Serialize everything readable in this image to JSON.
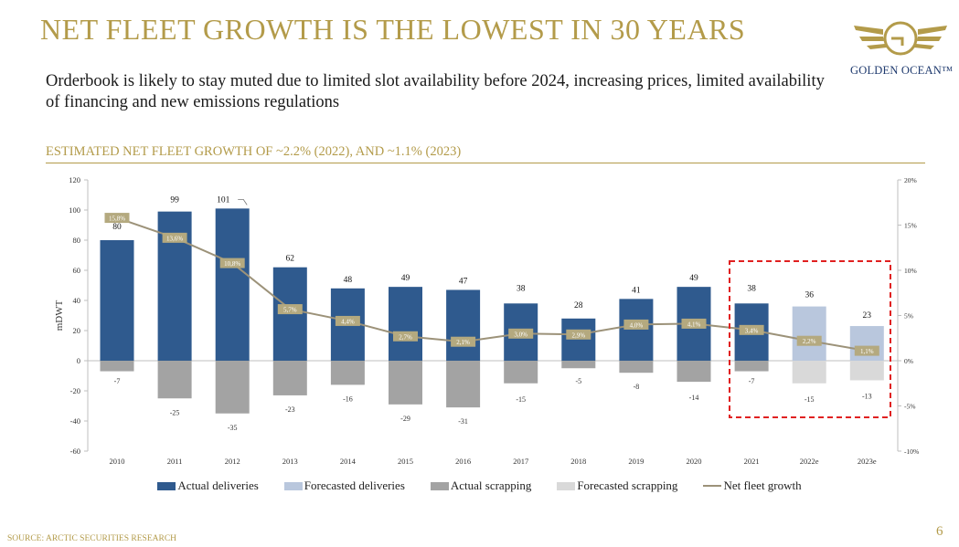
{
  "title": "NET FLEET GROWTH IS THE LOWEST IN 30 YEARS",
  "subtitle": "Orderbook is likely to stay muted due to limited slot availability before 2024, increasing prices, limited availability of financing and new emissions regulations",
  "section_heading": "ESTIMATED NET FLEET GROWTH OF ~2.2% (2022), AND ~1.1% (2023)",
  "logo": {
    "text": "GOLDEN OCEAN™",
    "icon": "golden-ocean-winged-g-logo",
    "color": "#b39b4a"
  },
  "source": "SOURCE: ARCTIC SECURITIES RESEARCH",
  "page_number": "6",
  "colors": {
    "actual_deliveries": "#2f5a8e",
    "forecasted_deliveries": "#b9c7dd",
    "actual_scrapping": "#a3a3a3",
    "forecasted_scrapping": "#d9d9d9",
    "net_fleet_growth": "#9c9279",
    "growth_label_bg": "#b4a97f",
    "highlight_box": "#e02020"
  },
  "chart_data": {
    "type": "bar",
    "categories": [
      "2010",
      "2011",
      "2012",
      "2013",
      "2014",
      "2015",
      "2016",
      "2017",
      "2018",
      "2019",
      "2020",
      "2021",
      "2022e",
      "2023e"
    ],
    "series": [
      {
        "name": "Actual deliveries",
        "values": [
          80,
          99,
          101,
          62,
          48,
          49,
          47,
          38,
          28,
          41,
          49,
          38,
          null,
          null
        ]
      },
      {
        "name": "Forecasted deliveries",
        "values": [
          null,
          null,
          null,
          null,
          null,
          null,
          null,
          null,
          null,
          null,
          null,
          null,
          36,
          23
        ]
      },
      {
        "name": "Actual scrapping",
        "values": [
          -7,
          -25,
          -35,
          -23,
          -16,
          -29,
          -31,
          -15,
          -5,
          -8,
          -14,
          -7,
          null,
          null
        ]
      },
      {
        "name": "Forecasted scrapping",
        "values": [
          null,
          null,
          null,
          null,
          null,
          null,
          null,
          null,
          null,
          null,
          null,
          null,
          -15,
          -13
        ]
      },
      {
        "name": "Net fleet growth",
        "type": "line",
        "axis": "right",
        "values": [
          15.8,
          13.6,
          10.8,
          5.7,
          4.4,
          2.7,
          2.1,
          3.0,
          2.9,
          4.0,
          4.1,
          3.4,
          2.2,
          1.1
        ]
      }
    ],
    "delivery_labels": [
      "80",
      "99",
      "101",
      "62",
      "48",
      "49",
      "47",
      "38",
      "28",
      "41",
      "49",
      "38",
      "36",
      "23"
    ],
    "scrapping_labels": [
      "-7",
      "-25",
      "-35",
      "-23",
      "-16",
      "-29",
      "-31",
      "-15",
      "-5",
      "-8",
      "-14",
      "-7",
      "-15",
      "-13"
    ],
    "growth_labels": [
      "15,8%",
      "13,6%",
      "10,8%",
      "5,7%",
      "4,4%",
      "2,7%",
      "2,1%",
      "3,0%",
      "2,9%",
      "4,0%",
      "4,1%",
      "3,4%",
      "2,2%",
      "1,1%"
    ],
    "ylabel": "mDWT",
    "ylim": [
      -60,
      120
    ],
    "yticks": [
      -60,
      -40,
      -20,
      0,
      20,
      40,
      60,
      80,
      100,
      120
    ],
    "y2lim": [
      -10,
      20
    ],
    "y2ticks": [
      "-10%",
      "-5%",
      "0%",
      "5%",
      "10%",
      "15%",
      "20%"
    ],
    "highlight_categories": [
      "2021",
      "2022e",
      "2023e"
    ],
    "grid": false,
    "legend_position": "bottom"
  }
}
